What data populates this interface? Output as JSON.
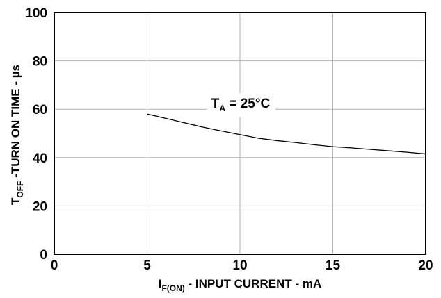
{
  "chart_data": {
    "type": "line",
    "title": "",
    "xlabel": {
      "main": "I",
      "sub": "F(ON)",
      "rest": " - INPUT CURRENT - mA"
    },
    "ylabel": {
      "main": "T",
      "sub": "OFF",
      "rest": " -TURN ON TIME - µs"
    },
    "xlim": [
      0,
      20
    ],
    "ylim": [
      0,
      100
    ],
    "xticks": [
      0,
      5,
      10,
      15,
      20
    ],
    "yticks": [
      0,
      20,
      40,
      60,
      80,
      100
    ],
    "grid": true,
    "annotation": {
      "main": "T",
      "sub": "A",
      "rest": " = 25°C"
    },
    "series": [
      {
        "color": "#000000",
        "x": [
          5,
          6,
          7,
          8,
          9,
          10,
          11,
          12,
          13,
          14,
          15,
          16,
          17,
          18,
          19,
          20
        ],
        "y": [
          58,
          56.2,
          54.4,
          52.6,
          51,
          49.5,
          48,
          47,
          46.2,
          45.3,
          44.5,
          44,
          43.4,
          42.8,
          42.2,
          41.5
        ]
      }
    ]
  }
}
